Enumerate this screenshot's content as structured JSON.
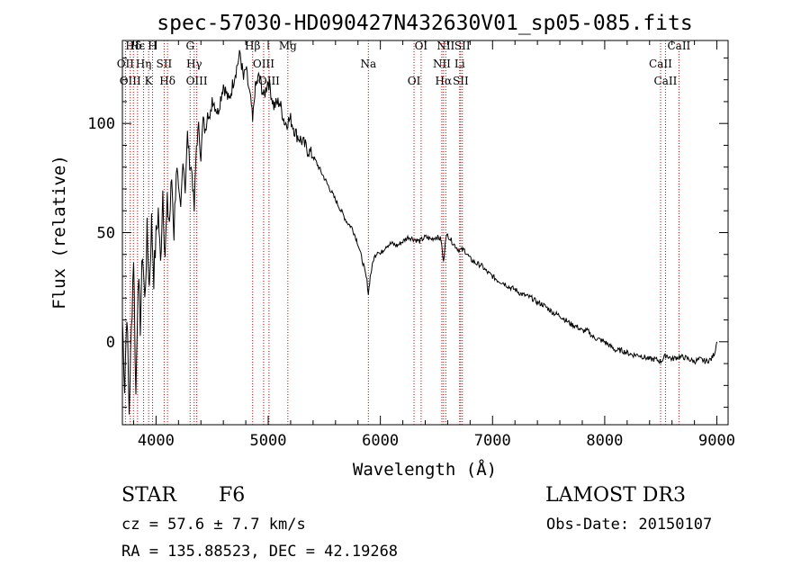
{
  "chart_data": {
    "type": "line",
    "title": "spec-57030-HD090427N432630V01_sp05-085.fits",
    "xlabel": "Wavelength (Å)",
    "ylabel": "Flux (relative)",
    "xlim": [
      3700,
      9100
    ],
    "ylim": [
      -38,
      138
    ],
    "x_ticks": [
      4000,
      5000,
      6000,
      7000,
      8000,
      9000
    ],
    "y_ticks": [
      0,
      50,
      100
    ],
    "grid": false,
    "series": [
      {
        "name": "flux",
        "x": [
          3700,
          3720,
          3740,
          3760,
          3780,
          3800,
          3820,
          3840,
          3860,
          3880,
          3900,
          3920,
          3940,
          3960,
          3980,
          4000,
          4020,
          4040,
          4060,
          4080,
          4100,
          4120,
          4140,
          4160,
          4180,
          4200,
          4220,
          4240,
          4260,
          4280,
          4300,
          4320,
          4340,
          4360,
          4380,
          4400,
          4420,
          4440,
          4460,
          4480,
          4500,
          4550,
          4600,
          4650,
          4700,
          4750,
          4780,
          4800,
          4850,
          4861,
          4880,
          4920,
          4960,
          5000,
          5050,
          5100,
          5150,
          5200,
          5250,
          5300,
          5350,
          5400,
          5450,
          5500,
          5550,
          5600,
          5650,
          5700,
          5750,
          5800,
          5850,
          5880,
          5893,
          5910,
          5940,
          5980,
          6000,
          6050,
          6100,
          6150,
          6200,
          6250,
          6300,
          6350,
          6400,
          6450,
          6500,
          6540,
          6563,
          6580,
          6600,
          6650,
          6700,
          6750,
          6800,
          6850,
          6900,
          6950,
          7000,
          7050,
          7100,
          7150,
          7200,
          7250,
          7300,
          7350,
          7400,
          7450,
          7500,
          7550,
          7600,
          7650,
          7700,
          7750,
          7800,
          7850,
          7900,
          7950,
          8000,
          8050,
          8100,
          8150,
          8200,
          8250,
          8300,
          8350,
          8400,
          8450,
          8500,
          8550,
          8600,
          8650,
          8700,
          8750,
          8800,
          8850,
          8900,
          8950,
          8980,
          9000
        ],
        "y": [
          10,
          -20,
          15,
          -32,
          5,
          40,
          -25,
          30,
          8,
          42,
          18,
          50,
          25,
          55,
          30,
          48,
          60,
          35,
          70,
          40,
          62,
          55,
          75,
          50,
          80,
          68,
          60,
          85,
          70,
          95,
          82,
          78,
          60,
          90,
          98,
          85,
          102,
          95,
          108,
          100,
          112,
          105,
          118,
          110,
          122,
          132,
          120,
          125,
          108,
          100,
          115,
          122,
          112,
          120,
          108,
          110,
          100,
          102,
          95,
          92,
          88,
          85,
          80,
          75,
          70,
          65,
          60,
          55,
          52,
          45,
          35,
          28,
          22,
          30,
          38,
          42,
          40,
          44,
          45,
          44,
          46,
          48,
          47,
          46,
          48,
          47,
          48,
          47,
          36,
          47,
          49,
          45,
          42,
          42,
          38,
          36,
          35,
          32,
          30,
          28,
          27,
          25,
          24,
          22,
          21,
          20,
          18,
          17,
          15,
          13,
          12,
          10,
          8,
          7,
          5,
          5,
          2,
          1,
          0,
          -2,
          -4,
          -4,
          -5,
          -6,
          -6,
          -7,
          -8,
          -8,
          -9,
          -6,
          -8,
          -7,
          -7,
          -8,
          -9,
          -8,
          -9,
          -8,
          -5,
          0
        ]
      }
    ],
    "line_markers": [
      {
        "label": "Hδ",
        "wavelength": 3798
      },
      {
        "label": "OII",
        "wavelength": 3727
      },
      {
        "label": "OIII",
        "wavelength": 3770
      },
      {
        "label": "Hε",
        "wavelength": 3835
      },
      {
        "label": "Hη",
        "wavelength": 3889
      },
      {
        "label": "K",
        "wavelength": 3934
      },
      {
        "label": "H",
        "wavelength": 3969
      },
      {
        "label": "SII",
        "wavelength": 4072
      },
      {
        "label": "Hδ",
        "wavelength": 4102
      },
      {
        "label": "G",
        "wavelength": 4304
      },
      {
        "label": "Hγ",
        "wavelength": 4340
      },
      {
        "label": "OIII",
        "wavelength": 4363
      },
      {
        "label": "Hβ",
        "wavelength": 4861
      },
      {
        "label": "OIII",
        "wavelength": 4959
      },
      {
        "label": "OIII",
        "wavelength": 5007
      },
      {
        "label": "Mg",
        "wavelength": 5175
      },
      {
        "label": "Na",
        "wavelength": 5893
      },
      {
        "label": "OI",
        "wavelength": 6300
      },
      {
        "label": "OI",
        "wavelength": 6363
      },
      {
        "label": "NII",
        "wavelength": 6548
      },
      {
        "label": "Hα",
        "wavelength": 6563
      },
      {
        "label": "NII",
        "wavelength": 6583
      },
      {
        "label": "Li",
        "wavelength": 6707
      },
      {
        "label": "SII",
        "wavelength": 6716
      },
      {
        "label": "SII",
        "wavelength": 6731
      },
      {
        "label": "CaII",
        "wavelength": 8498
      },
      {
        "label": "CaII",
        "wavelength": 8542
      },
      {
        "label": "CaII",
        "wavelength": 8662
      }
    ]
  },
  "info": {
    "class_label": "STAR",
    "subclass": "F6",
    "survey": "LAMOST DR3",
    "cz_text": "cz = 57.6 ± 7.7 km/s",
    "obs_date": "Obs-Date: 20150107",
    "coords": "RA = 135.88523, DEC =  42.19268"
  }
}
